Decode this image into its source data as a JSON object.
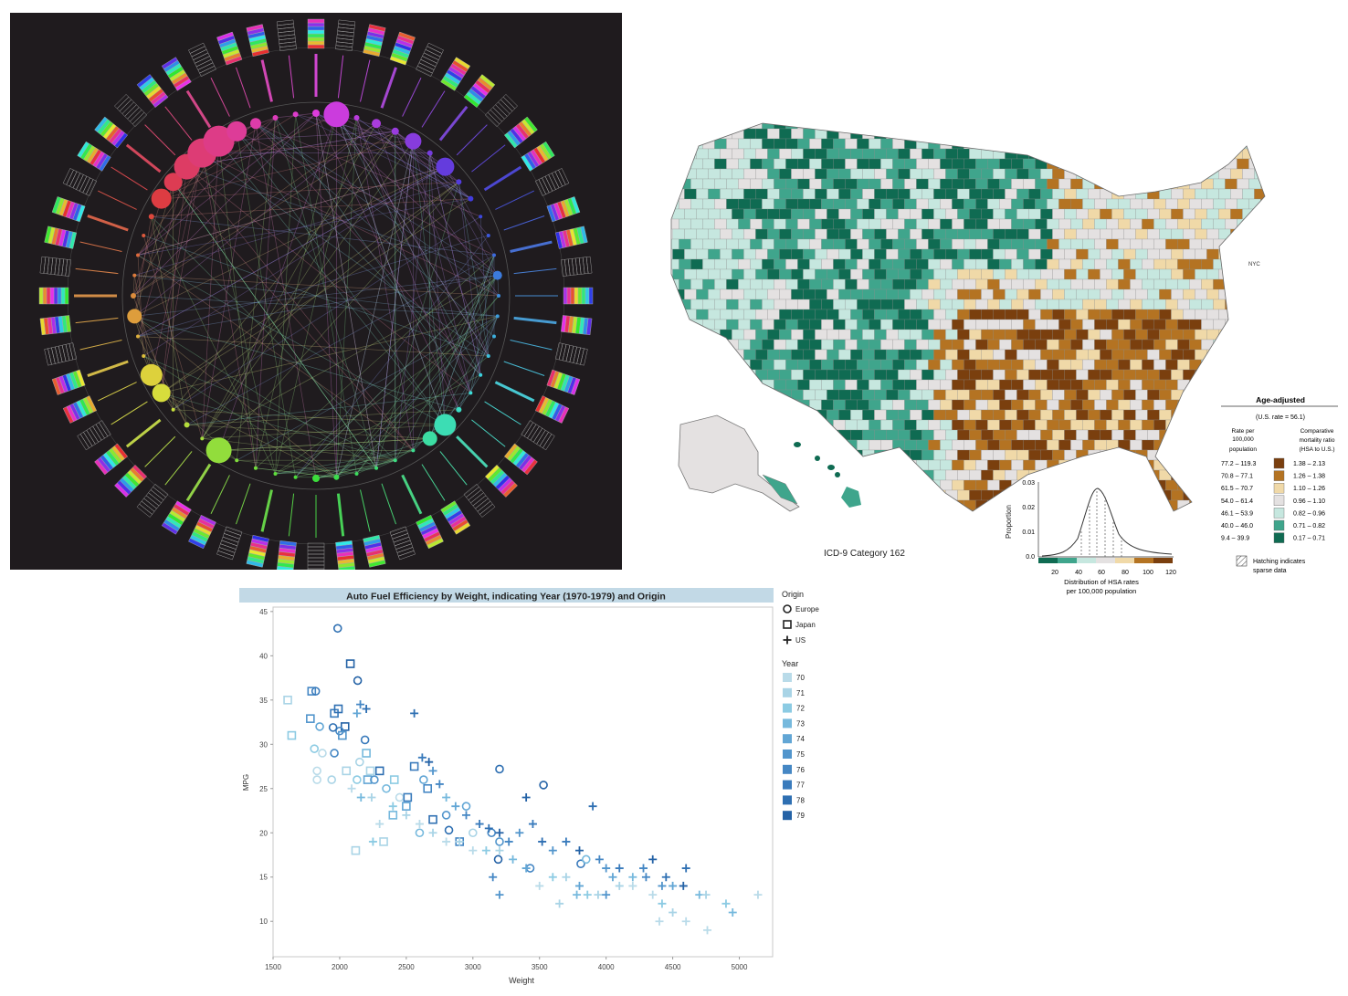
{
  "map": {
    "title": "Age-adjusted",
    "us_rate": "(U.S. rate = 56.1)",
    "col_rate_header": [
      "Rate per",
      "100,000",
      "population"
    ],
    "col_ratio_header": [
      "Comparative",
      "mortality ratio",
      "(HSA to U.S.)"
    ],
    "rate_ranges": [
      "77.2 – 119.3",
      "70.8 – 77.1",
      "61.5 – 70.7",
      "54.0 – 61.4",
      "46.1 – 53.9",
      "40.0 – 46.0",
      "9.4 – 39.9"
    ],
    "ratio_ranges": [
      "1.38 – 2.13",
      "1.26 – 1.38",
      "1.10 – 1.26",
      "0.96 – 1.10",
      "0.82 – 0.96",
      "0.71 – 0.82",
      "0.17 – 0.71"
    ],
    "legend_colors": [
      "#7a3f0e",
      "#b47322",
      "#f0d9a8",
      "#e4e1e1",
      "#c6e7df",
      "#3fa58c",
      "#0f6b52"
    ],
    "hatch_note": [
      "Hatching indicates",
      "sparse data"
    ],
    "category_label": "ICD-9 Category 162",
    "city_label": "NYC",
    "histogram": {
      "ylabel": "Proportion",
      "yticks": [
        "0.03",
        "0.02",
        "0.01",
        "0.0"
      ],
      "xticks": [
        "20",
        "40",
        "60",
        "80",
        "100",
        "120"
      ],
      "caption": [
        "Distribution of HSA rates",
        "per 100,000 population"
      ]
    }
  },
  "chart_data": {
    "type": "scatter",
    "title": "Auto Fuel Efficiency by Weight, indicating Year (1970-1979) and Origin",
    "xlabel": "Weight",
    "ylabel": "MPG",
    "xlim": [
      1500,
      5250
    ],
    "ylim": [
      6,
      45.5
    ],
    "xticks": [
      "1500",
      "2000",
      "2500",
      "3000",
      "3500",
      "4000",
      "4500",
      "5000"
    ],
    "yticks": [
      "45",
      "40",
      "35",
      "30",
      "25",
      "20",
      "15",
      "10"
    ],
    "legend_origin_title": "Origin",
    "origins": [
      {
        "name": "Europe",
        "shape": "circle"
      },
      {
        "name": "Japan",
        "shape": "square"
      },
      {
        "name": "US",
        "shape": "plus"
      }
    ],
    "legend_year_title": "Year",
    "years": [
      {
        "label": "70",
        "color": "#b9dbe9"
      },
      {
        "label": "71",
        "color": "#a9d4e6"
      },
      {
        "label": "72",
        "color": "#8ccbe3"
      },
      {
        "label": "73",
        "color": "#76b9dd"
      },
      {
        "label": "74",
        "color": "#62a6d5"
      },
      {
        "label": "75",
        "color": "#5295cc"
      },
      {
        "label": "76",
        "color": "#4587c4"
      },
      {
        "label": "77",
        "color": "#3a7bbc"
      },
      {
        "label": "78",
        "color": "#2e6fb2"
      },
      {
        "label": "79",
        "color": "#2462a6"
      }
    ],
    "points": [
      [
        1985,
        43.1,
        0,
        8
      ],
      [
        2080,
        39.1,
        1,
        9
      ],
      [
        2135,
        37.2,
        0,
        9
      ],
      [
        1790,
        36.0,
        1,
        6
      ],
      [
        1820,
        36.0,
        0,
        7
      ],
      [
        1610,
        35.0,
        1,
        1
      ],
      [
        1640,
        31.0,
        1,
        2
      ],
      [
        1780,
        32.9,
        1,
        5
      ],
      [
        1850,
        32.0,
        0,
        4
      ],
      [
        1960,
        33.5,
        1,
        7
      ],
      [
        1990,
        34.0,
        1,
        8
      ],
      [
        2040,
        32.0,
        1,
        9
      ],
      [
        2000,
        31.5,
        0,
        6
      ],
      [
        1950,
        31.9,
        0,
        8
      ],
      [
        2020,
        31.0,
        1,
        5
      ],
      [
        1810,
        29.5,
        0,
        2
      ],
      [
        1870,
        29.0,
        0,
        0
      ],
      [
        1960,
        29.0,
        0,
        6
      ],
      [
        2190,
        30.5,
        0,
        7
      ],
      [
        2200,
        29.0,
        1,
        3
      ],
      [
        2150,
        28.0,
        0,
        1
      ],
      [
        2230,
        27.0,
        1,
        1
      ],
      [
        1830,
        26.0,
        0,
        0
      ],
      [
        1830,
        27.0,
        0,
        0
      ],
      [
        1940,
        26.0,
        0,
        1
      ],
      [
        2050,
        27.0,
        1,
        1
      ],
      [
        2130,
        26.0,
        0,
        2
      ],
      [
        2210,
        26.0,
        1,
        4
      ],
      [
        2260,
        26.0,
        0,
        5
      ],
      [
        2300,
        27.0,
        1,
        8
      ],
      [
        2350,
        25.0,
        0,
        3
      ],
      [
        2410,
        26.0,
        1,
        2
      ],
      [
        2450,
        24.0,
        0,
        0
      ],
      [
        2510,
        24.0,
        1,
        7
      ],
      [
        2560,
        27.5,
        1,
        7
      ],
      [
        2630,
        26.0,
        0,
        4
      ],
      [
        2660,
        25.0,
        1,
        6
      ],
      [
        2500,
        23.0,
        1,
        4
      ],
      [
        2400,
        22.0,
        1,
        3
      ],
      [
        2330,
        19.0,
        1,
        1
      ],
      [
        2120,
        18.0,
        1,
        1
      ],
      [
        2600,
        20.0,
        0,
        3
      ],
      [
        2700,
        21.5,
        1,
        8
      ],
      [
        2800,
        22.0,
        0,
        5
      ],
      [
        2820,
        20.3,
        0,
        8
      ],
      [
        2900,
        19.0,
        1,
        6
      ],
      [
        2950,
        23.0,
        0,
        4
      ],
      [
        3000,
        20.0,
        0,
        1
      ],
      [
        3140,
        20.0,
        0,
        6
      ],
      [
        3200,
        19.0,
        0,
        5
      ],
      [
        3190,
        17.0,
        0,
        9
      ],
      [
        3200,
        27.2,
        0,
        8
      ],
      [
        3530,
        25.4,
        0,
        9
      ],
      [
        3430,
        16.0,
        0,
        6
      ],
      [
        3810,
        16.5,
        0,
        7
      ],
      [
        3850,
        17.0,
        0,
        3
      ],
      [
        2090,
        25.0,
        3,
        0
      ],
      [
        2240,
        24.0,
        3,
        1
      ],
      [
        2130,
        33.5,
        2,
        4
      ],
      [
        2155,
        34.5,
        2,
        6
      ],
      [
        2200,
        34.0,
        2,
        8
      ],
      [
        2560,
        33.5,
        2,
        8
      ],
      [
        2620,
        28.5,
        2,
        7
      ],
      [
        2670,
        28.0,
        2,
        9
      ],
      [
        2700,
        27.0,
        2,
        5
      ],
      [
        2750,
        25.5,
        2,
        6
      ],
      [
        2800,
        24.0,
        2,
        3
      ],
      [
        2870,
        23.0,
        2,
        4
      ],
      [
        2950,
        22.0,
        2,
        6
      ],
      [
        3050,
        21.0,
        2,
        7
      ],
      [
        3120,
        20.5,
        2,
        8
      ],
      [
        3200,
        20.0,
        2,
        9
      ],
      [
        3270,
        19.0,
        2,
        6
      ],
      [
        3350,
        20.0,
        2,
        5
      ],
      [
        3450,
        21.0,
        2,
        7
      ],
      [
        3400,
        24.0,
        2,
        9
      ],
      [
        3520,
        19.0,
        2,
        8
      ],
      [
        3600,
        18.0,
        2,
        5
      ],
      [
        3700,
        19.0,
        2,
        7
      ],
      [
        3800,
        18.0,
        2,
        9
      ],
      [
        3900,
        23.0,
        2,
        8
      ],
      [
        3950,
        17.0,
        2,
        6
      ],
      [
        4000,
        16.0,
        2,
        5
      ],
      [
        4050,
        15.0,
        2,
        4
      ],
      [
        4100,
        16.0,
        2,
        7
      ],
      [
        4200,
        15.0,
        2,
        3
      ],
      [
        4280,
        16.0,
        2,
        6
      ],
      [
        4350,
        17.0,
        2,
        9
      ],
      [
        4420,
        14.0,
        2,
        5
      ],
      [
        4500,
        14.0,
        2,
        4
      ],
      [
        4600,
        16.0,
        2,
        8
      ],
      [
        4700,
        13.0,
        2,
        3
      ],
      [
        4750,
        13.0,
        2,
        1
      ],
      [
        4900,
        12.0,
        2,
        2
      ],
      [
        4950,
        11.0,
        2,
        3
      ],
      [
        5140,
        13.0,
        2,
        0
      ],
      [
        4400,
        10.0,
        2,
        0
      ],
      [
        4600,
        10.0,
        2,
        0
      ],
      [
        4760,
        9.0,
        2,
        0
      ],
      [
        4500,
        11.0,
        2,
        1
      ],
      [
        4420,
        12.0,
        2,
        2
      ],
      [
        4350,
        13.0,
        2,
        0
      ],
      [
        4200,
        14.0,
        2,
        0
      ],
      [
        4100,
        14.0,
        2,
        1
      ],
      [
        3940,
        13.0,
        2,
        1
      ],
      [
        3860,
        13.0,
        2,
        2
      ],
      [
        3780,
        13.0,
        2,
        3
      ],
      [
        3700,
        15.0,
        2,
        1
      ],
      [
        3600,
        15.0,
        2,
        2
      ],
      [
        3500,
        14.0,
        2,
        0
      ],
      [
        3400,
        16.0,
        2,
        4
      ],
      [
        3300,
        17.0,
        2,
        3
      ],
      [
        3200,
        18.0,
        2,
        1
      ],
      [
        3100,
        18.0,
        2,
        2
      ],
      [
        3000,
        18.0,
        2,
        0
      ],
      [
        2900,
        19.0,
        2,
        1
      ],
      [
        2800,
        19.0,
        2,
        0
      ],
      [
        2700,
        20.0,
        2,
        1
      ],
      [
        2600,
        21.0,
        2,
        0
      ],
      [
        2500,
        22.0,
        2,
        1
      ],
      [
        2400,
        23.0,
        2,
        2
      ],
      [
        2300,
        21.0,
        2,
        0
      ],
      [
        2250,
        19.0,
        2,
        2
      ],
      [
        2160,
        24.0,
        2,
        3
      ],
      [
        3800,
        14.0,
        2,
        4
      ],
      [
        4000,
        13.0,
        2,
        5
      ],
      [
        4300,
        15.0,
        2,
        6
      ],
      [
        4450,
        15.0,
        2,
        8
      ],
      [
        4580,
        14.0,
        2,
        9
      ],
      [
        3650,
        12.0,
        2,
        1
      ],
      [
        3200,
        13.0,
        2,
        5
      ],
      [
        3150,
        15.0,
        2,
        6
      ]
    ]
  }
}
